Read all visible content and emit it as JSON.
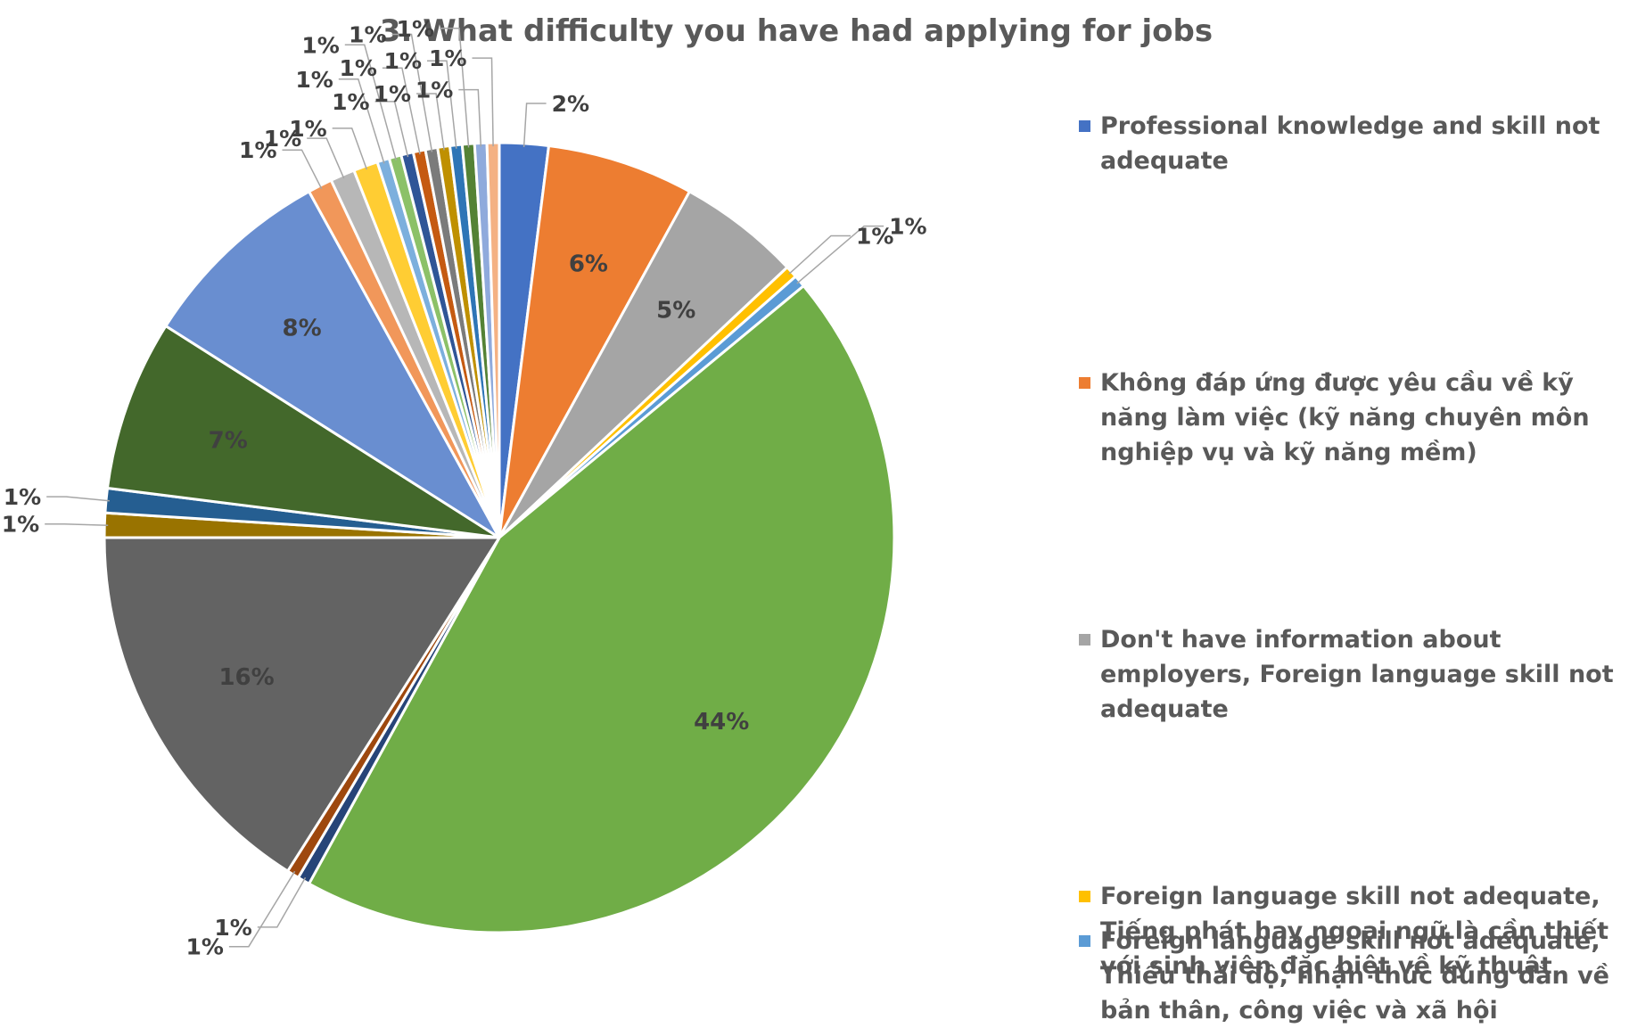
{
  "chart_data": {
    "type": "pie",
    "title": "3. What difficulty you have had applying for jobs",
    "slices": [
      {
        "value": 2,
        "label": "2%",
        "color": "#4472C4"
      },
      {
        "value": 6,
        "label": "6%",
        "color": "#ED7D31"
      },
      {
        "value": 5,
        "label": "5%",
        "color": "#A5A5A5"
      },
      {
        "value": 0.5,
        "label": "1%",
        "color": "#FFC000"
      },
      {
        "value": 0.5,
        "label": "1%",
        "color": "#5B9BD5"
      },
      {
        "value": 44,
        "label": "44%",
        "color": "#70AD47"
      },
      {
        "value": 0.5,
        "label": "1%",
        "color": "#264478"
      },
      {
        "value": 0.5,
        "label": "1%",
        "color": "#9E480E"
      },
      {
        "value": 16,
        "label": "16%",
        "color": "#636363"
      },
      {
        "value": 1,
        "label": "1%",
        "color": "#997300"
      },
      {
        "value": 1,
        "label": "1%",
        "color": "#255E91"
      },
      {
        "value": 7,
        "label": "7%",
        "color": "#43682B"
      },
      {
        "value": 8,
        "label": "8%",
        "color": "#698ED0"
      },
      {
        "value": 1,
        "label": "1%",
        "color": "#F1975A"
      },
      {
        "value": 1,
        "label": "1%",
        "color": "#B7B7B7"
      },
      {
        "value": 1,
        "label": "1%",
        "color": "#FFCD33"
      },
      {
        "value": 0.5,
        "label": "1%",
        "color": "#7CAFDD"
      },
      {
        "value": 0.5,
        "label": "1%",
        "color": "#8CC168"
      },
      {
        "value": 0.5,
        "label": "1%",
        "color": "#2F5597"
      },
      {
        "value": 0.5,
        "label": "1%",
        "color": "#C55A11"
      },
      {
        "value": 0.5,
        "label": "1%",
        "color": "#7B7B7B"
      },
      {
        "value": 0.5,
        "label": "1%",
        "color": "#BF9000"
      },
      {
        "value": 0.5,
        "label": "1%",
        "color": "#2E75B6"
      },
      {
        "value": 0.5,
        "label": "1%",
        "color": "#548235"
      },
      {
        "value": 0.5,
        "label": "1%",
        "color": "#8FAADC"
      },
      {
        "value": 0.5,
        "label": "1%",
        "color": "#F4B183"
      }
    ],
    "legend": [
      {
        "name": "Professional knowledge and skill not adequate",
        "color": "#4472C4"
      },
      {
        "name": "Không đáp ứng được yêu cầu về kỹ năng làm việc (kỹ năng chuyên môn nghiệp vụ và kỹ năng mềm)",
        "color": "#ED7D31"
      },
      {
        "name": "Don't have information about employers, Foreign language skill not adequate",
        "color": "#A5A5A5"
      },
      {
        "name": "Foreign language skill not adequate, Tiếng phát hay ngoại ngữ là cần thiết với sinh viên đặc biệt về kỹ thuật",
        "color": "#FFC000"
      },
      {
        "name": "Foreign language skill not adequate, Thiếu thái độ, nhận thức đúng đắn về bản thân, công việc và xã hội",
        "color": "#5B9BD5"
      }
    ],
    "legend_position": "right"
  }
}
